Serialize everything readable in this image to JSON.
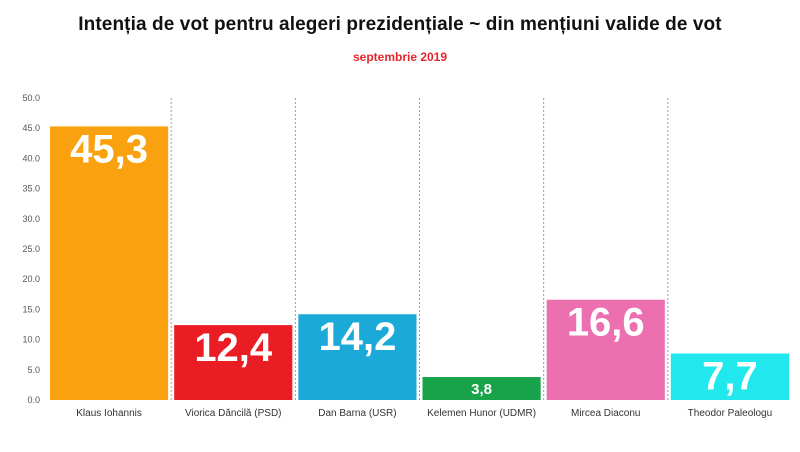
{
  "title": "Intenția de vot pentru alegeri prezidențiale ~ din mențiuni valide de vot",
  "subtitle": "septembrie 2019",
  "colors": {
    "title": "#111111",
    "subtitle": "#e3262c",
    "separator": "#9a9a9a"
  },
  "chart_data": {
    "type": "bar",
    "categories": [
      "Klaus Iohannis",
      "Viorica Dăncilă (PSD)",
      "Dan Barna (USR)",
      "Kelemen Hunor (UDMR)",
      "Mircea Diaconu",
      "Theodor Paleologu"
    ],
    "values": [
      45.3,
      12.4,
      14.2,
      3.8,
      16.6,
      7.7
    ],
    "value_labels": [
      "45,3",
      "12,4",
      "14,2",
      "3,8",
      "16,6",
      "7,7"
    ],
    "bar_colors": [
      "#f9a10f",
      "#ea1c24",
      "#1ba9d8",
      "#18a24a",
      "#ec6fb0",
      "#21e8ec"
    ],
    "ylim": [
      0,
      50
    ],
    "yticks": [
      0,
      5,
      10,
      15,
      20,
      25,
      30,
      35,
      40,
      45,
      50
    ],
    "ytick_labels": [
      "0.0",
      "5.0",
      "10.0",
      "15.0",
      "20.0",
      "25.0",
      "30.0",
      "35.0",
      "40.0",
      "45.0",
      "50.0"
    ],
    "grid": false,
    "legend": "none"
  }
}
